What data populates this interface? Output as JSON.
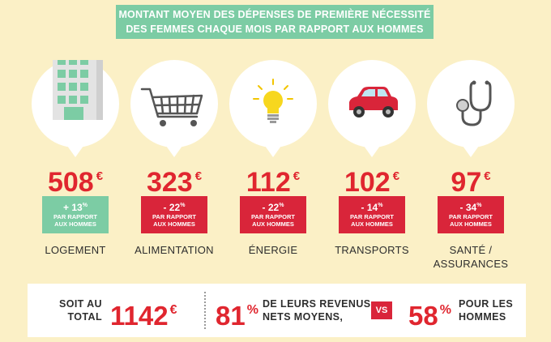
{
  "title": {
    "line1": "MONTANT MOYEN DES DÉPENSES DE PREMIÈRE NÉCESSITÉ",
    "line2": "DES FEMMES CHAQUE MOIS PAR RAPPORT AUX HOMMES"
  },
  "categories": [
    {
      "icon": "building-icon",
      "amount": "508",
      "currency": "€",
      "sign": "+ 13",
      "pct_unit": "%",
      "cmp_line1": "PAR RAPPORT",
      "cmp_line2": "AUX HOMMES",
      "badge_color": "#7ccca4",
      "label_line1": "LOGEMENT",
      "label_line2": ""
    },
    {
      "icon": "shopping-cart-icon",
      "amount": "323",
      "currency": "€",
      "sign": "- 22",
      "pct_unit": "%",
      "cmp_line1": "PAR RAPPORT",
      "cmp_line2": "AUX HOMMES",
      "badge_color": "#d9253a",
      "label_line1": "ALIMENTATION",
      "label_line2": ""
    },
    {
      "icon": "light-bulb-icon",
      "amount": "112",
      "currency": "€",
      "sign": "- 22",
      "pct_unit": "%",
      "cmp_line1": "PAR RAPPORT",
      "cmp_line2": "AUX HOMMES",
      "badge_color": "#d9253a",
      "label_line1": "ÉNERGIE",
      "label_line2": ""
    },
    {
      "icon": "car-icon",
      "amount": "102",
      "currency": "€",
      "sign": "- 14",
      "pct_unit": "%",
      "cmp_line1": "PAR RAPPORT",
      "cmp_line2": "AUX HOMMES",
      "badge_color": "#d9253a",
      "label_line1": "TRANSPORTS",
      "label_line2": ""
    },
    {
      "icon": "stethoscope-icon",
      "amount": "97",
      "currency": "€",
      "sign": "- 34",
      "pct_unit": "%",
      "cmp_line1": "PAR RAPPORT",
      "cmp_line2": "AUX HOMMES",
      "badge_color": "#d9253a",
      "label_line1": "SANTÉ /",
      "label_line2": "ASSURANCES"
    }
  ],
  "summary": {
    "total_label_line1": "SOIT AU",
    "total_label_line2": "TOTAL",
    "total_value": "1142",
    "total_currency": "€",
    "women_pct": "81",
    "women_unit": "%",
    "income_line1": "DE LEURS REVENUS",
    "income_line2": "NETS MOYENS,",
    "vs": "VS",
    "men_pct": "58",
    "men_unit": "%",
    "men_line1": "POUR LES",
    "men_line2": "HOMMES"
  },
  "colors": {
    "background": "#fbf0c6",
    "accent_green": "#7ccca4",
    "accent_red": "#d9253a",
    "amount_red": "#e0262f"
  }
}
